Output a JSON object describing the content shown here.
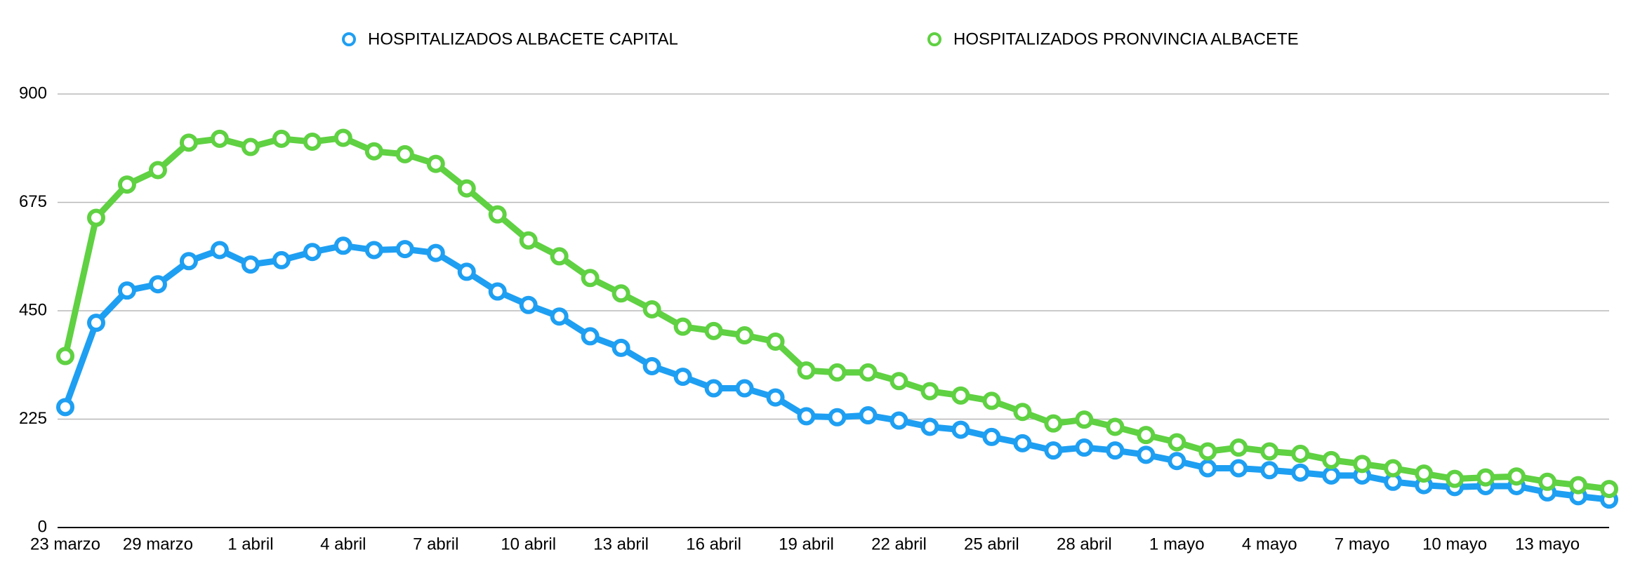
{
  "chart_data": {
    "type": "line",
    "categories": [
      "23 marzo",
      null,
      null,
      "29 marzo",
      null,
      null,
      "1 abril",
      null,
      null,
      "4 abril",
      null,
      null,
      "7 abril",
      null,
      null,
      "10 abril",
      null,
      null,
      "13 abril",
      null,
      null,
      "16 abril",
      null,
      null,
      "19 abril",
      null,
      null,
      "22 abril",
      null,
      null,
      "25 abril",
      null,
      null,
      "28 abril",
      null,
      null,
      "1 mayo",
      null,
      null,
      "4 mayo",
      null,
      null,
      "7 mayo",
      null,
      null,
      "10 mayo",
      null,
      null,
      "13 mayo",
      null,
      null
    ],
    "series": [
      {
        "name": "HOSPITALIZADOS ALBACETE CAPITAL",
        "color": "#1e9ff2",
        "values": [
          250,
          425,
          492,
          505,
          553,
          576,
          546,
          555,
          572,
          585,
          576,
          578,
          570,
          531,
          490,
          462,
          438,
          397,
          373,
          335,
          313,
          289,
          289,
          270,
          231,
          229,
          233,
          222,
          209,
          203,
          188,
          175,
          160,
          166,
          160,
          151,
          138,
          123,
          123,
          119,
          114,
          108,
          108,
          95,
          88,
          84,
          86,
          86,
          73,
          65,
          58
        ]
      },
      {
        "name": "HOSPITALIZADOS PRONVINCIA ALBACETE",
        "color": "#5fd142",
        "values": [
          356,
          643,
          712,
          742,
          799,
          807,
          790,
          807,
          801,
          809,
          781,
          775,
          755,
          704,
          650,
          596,
          563,
          518,
          486,
          453,
          417,
          408,
          399,
          386,
          326,
          322,
          322,
          304,
          283,
          274,
          263,
          240,
          216,
          224,
          209,
          192,
          177,
          158,
          166,
          158,
          153,
          140,
          132,
          123,
          112,
          101,
          104,
          106,
          95,
          88,
          80
        ]
      }
    ],
    "ylim": [
      0,
      900
    ],
    "yticks": [
      0,
      225,
      450,
      675,
      900
    ],
    "grid": true
  }
}
